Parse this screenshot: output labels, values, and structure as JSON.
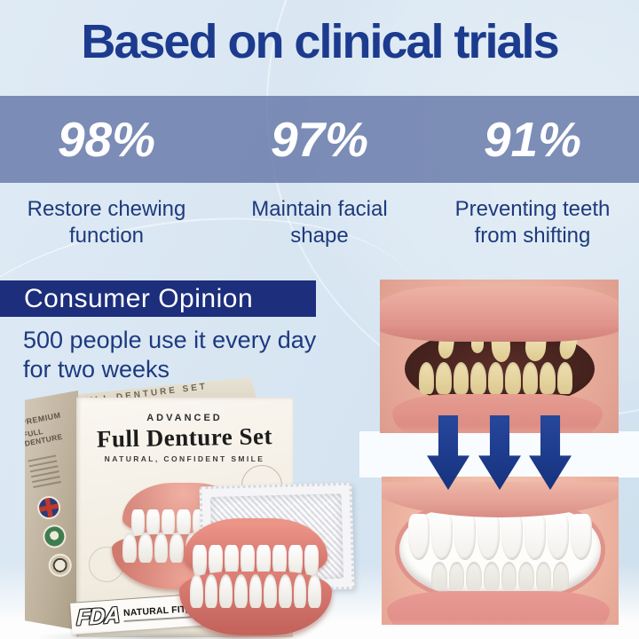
{
  "headline": {
    "text": "Based on clinical trials"
  },
  "stats": {
    "items": [
      {
        "value": "98%",
        "caption_line1": "Restore chewing",
        "caption_line2": "function"
      },
      {
        "value": "97%",
        "caption_line1": "Maintain facial",
        "caption_line2": "shape"
      },
      {
        "value": "91%",
        "caption_line1": "Preventing teeth",
        "caption_line2": "from shifting"
      }
    ]
  },
  "consumer": {
    "banner_title": "Consumer Opinion",
    "desc_line1": "500 people use it every day",
    "desc_line2": "for two weeks"
  },
  "product_box": {
    "top_edge_text": "FULL DENTURE SET",
    "side_premium": "PREMIUM",
    "side_product": "FULL DENTURE",
    "kicker": "ADVANCED",
    "title": "Full Denture Set",
    "subtitle": "NATURAL, CONFIDENT SMILE",
    "bottom_banner": "NATURAL FIT,CONFIDENT SMILE",
    "fda_mark": "FDA"
  },
  "colors": {
    "accent_navy": "#1c3b8e",
    "stats_band_blue": "#6578a8",
    "banner_navy": "#1c2e7c",
    "background_blue": "#d8e6f2",
    "arrow_navy": "#1c3a90"
  }
}
